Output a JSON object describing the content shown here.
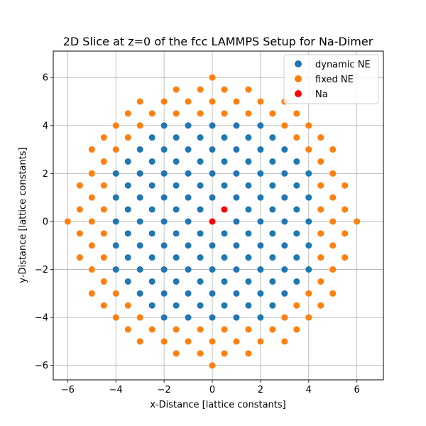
{
  "chart_data": {
    "type": "scatter",
    "title": "2D Slice at z=0 of the fcc LAMMPS Setup for Na-Dimer",
    "xlabel": "x-Distance [lattice constants]",
    "ylabel": "y-Distance [lattice constants]",
    "xlim": [
      -6.6,
      7.1
    ],
    "ylim": [
      -6.6,
      7.1
    ],
    "xticks": [
      -6,
      -4,
      -2,
      0,
      2,
      4,
      6
    ],
    "yticks": [
      -6,
      -4,
      -2,
      0,
      2,
      4,
      6
    ],
    "xtick_labels": [
      "−6",
      "−4",
      "−2",
      "0",
      "2",
      "4",
      "6"
    ],
    "ytick_labels": [
      "−6",
      "−4",
      "−2",
      "0",
      "2",
      "4",
      "6"
    ],
    "grid": true,
    "legend_position": "top-right",
    "series": [
      {
        "name": "dynamic NE",
        "color": "#1f77b4",
        "pattern": "fcc_shell",
        "r2_min": 0,
        "r2_max": 20.25,
        "excluded_points": [
          [
            0,
            0
          ],
          [
            0.5,
            0.5
          ]
        ]
      },
      {
        "name": "fixed NE",
        "color": "#ff7f0e",
        "pattern": "fcc_shell",
        "r2_min": 20.25,
        "r2_max": 36.5,
        "excluded_points": []
      },
      {
        "name": "Na",
        "color": "#ff0000",
        "points": [
          [
            0,
            0
          ],
          [
            0.5,
            0.5
          ]
        ]
      }
    ]
  }
}
